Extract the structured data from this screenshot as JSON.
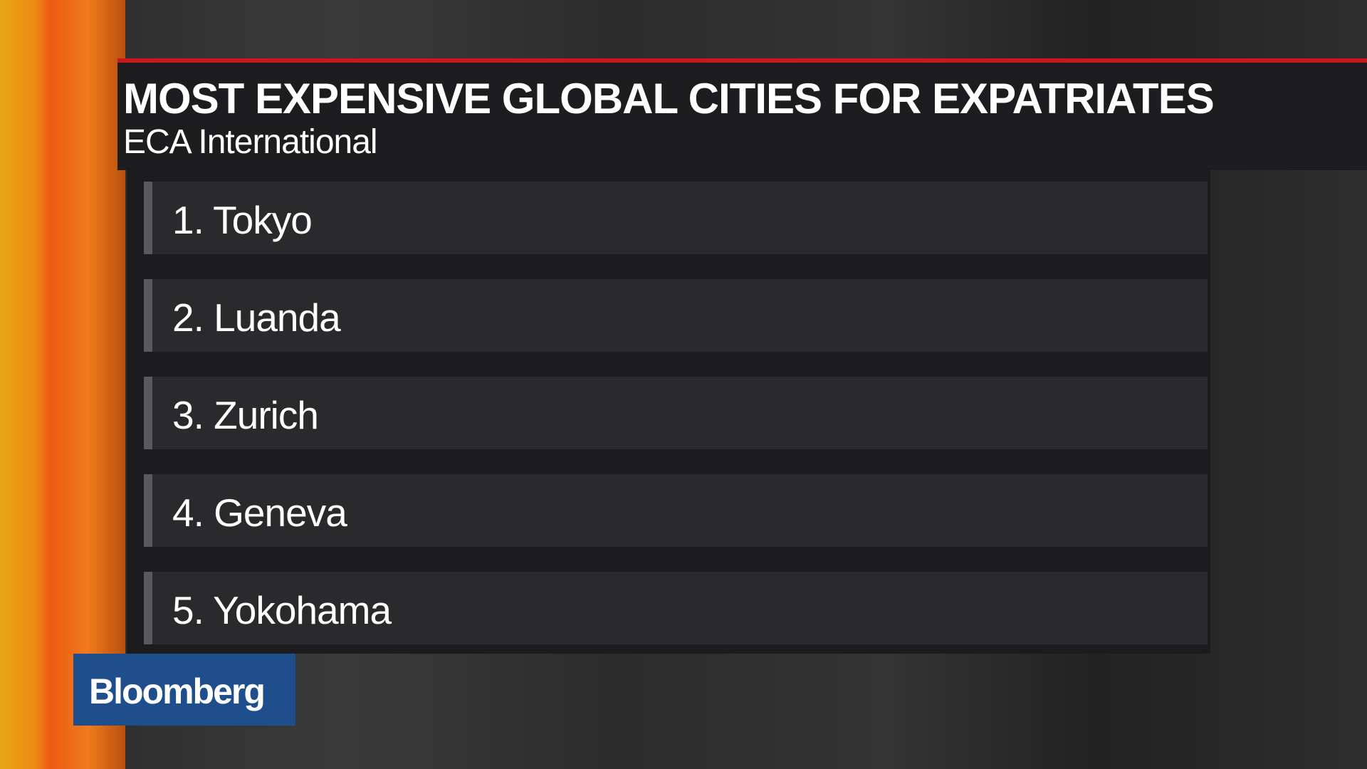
{
  "header": {
    "title": "MOST EXPENSIVE GLOBAL CITIES FOR EXPATRIATES",
    "subtitle": "ECA International"
  },
  "list": {
    "items": [
      "1. Tokyo",
      "2. Luanda",
      "3. Zurich",
      "4. Geneva",
      "5. Yokohama"
    ]
  },
  "brand": "Bloomberg"
}
